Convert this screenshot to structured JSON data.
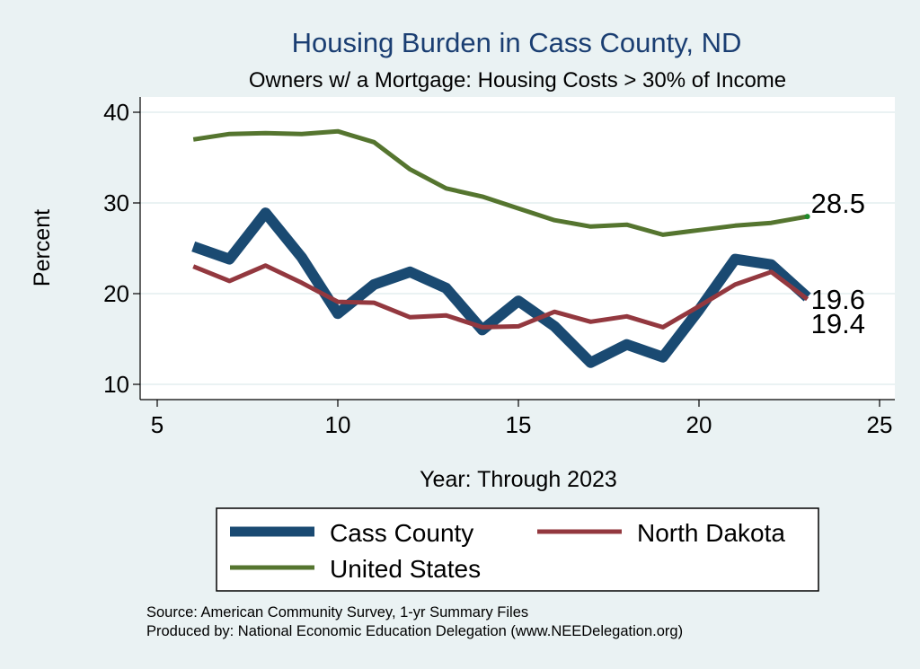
{
  "chart_data": {
    "type": "line",
    "title": "Housing Burden in Cass County, ND",
    "subtitle": "Owners w/ a Mortgage: Housing Costs > 30% of Income",
    "xlabel": "Year: Through 2023",
    "ylabel": "Percent",
    "xlim": [
      5,
      25
    ],
    "ylim": [
      10,
      40
    ],
    "xticks": [
      "5",
      "10",
      "15",
      "20",
      "25"
    ],
    "yticks": [
      "10",
      "20",
      "30",
      "40"
    ],
    "x": [
      6,
      7,
      8,
      9,
      10,
      11,
      12,
      13,
      14,
      15,
      16,
      17,
      18,
      19,
      20,
      21,
      22,
      23
    ],
    "series": [
      {
        "name": "Cass County",
        "color": "#1a4a72",
        "values": [
          25.2,
          23.8,
          28.9,
          24.0,
          17.8,
          21.0,
          22.4,
          20.6,
          16.0,
          19.2,
          16.4,
          12.4,
          14.4,
          13.0,
          18.2,
          23.8,
          23.2,
          19.6
        ]
      },
      {
        "name": "North Dakota",
        "color": "#93383f",
        "values": [
          23.0,
          21.4,
          23.1,
          21.2,
          19.1,
          19.0,
          17.4,
          17.6,
          16.3,
          16.4,
          18.0,
          16.9,
          17.5,
          16.3,
          18.6,
          21.0,
          22.4,
          19.4
        ]
      },
      {
        "name": "United States",
        "color": "#55752f",
        "values": [
          37.0,
          37.6,
          37.7,
          37.6,
          37.9,
          36.7,
          33.7,
          31.6,
          30.7,
          29.4,
          28.1,
          27.4,
          27.6,
          26.5,
          27.0,
          27.5,
          27.8,
          28.5
        ]
      }
    ],
    "end_labels": [
      "28.5",
      "19.6",
      "19.4"
    ],
    "legend_position": "bottom-center",
    "grid": true
  },
  "notes": {
    "source": "Source: American Community Survey, 1-yr Summary Files",
    "produced": "Produced by: National Economic Education Delegation (www.NEEDelegation.org)"
  }
}
